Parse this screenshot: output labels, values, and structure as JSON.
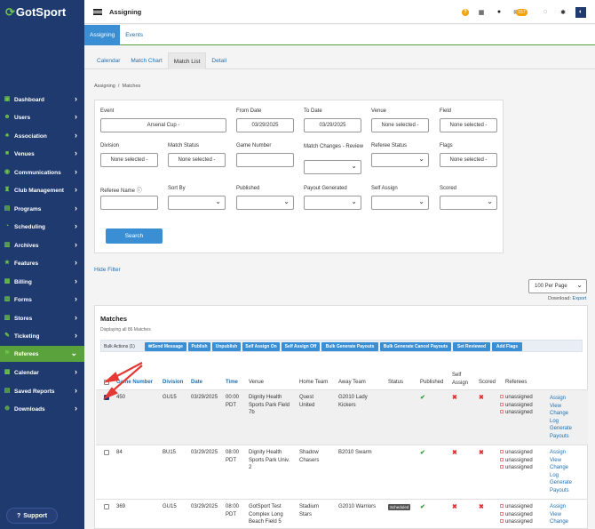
{
  "app": {
    "logo_text": "GotSport",
    "page_title": "Assigning"
  },
  "topbar": {
    "mail_badge": "157",
    "help_label": "?"
  },
  "sidebar": {
    "items": [
      {
        "label": "Dashboard",
        "icon": "dashboard-icon",
        "glyph": "▣"
      },
      {
        "label": "Users",
        "icon": "users-icon",
        "glyph": "☻"
      },
      {
        "label": "Association",
        "icon": "association-icon",
        "glyph": "♣"
      },
      {
        "label": "Venues",
        "icon": "venues-icon",
        "glyph": "■"
      },
      {
        "label": "Communications",
        "icon": "communications-icon",
        "glyph": "◉"
      },
      {
        "label": "Club Management",
        "icon": "club-icon",
        "glyph": "♜"
      },
      {
        "label": "Programs",
        "icon": "programs-icon",
        "glyph": "▤"
      },
      {
        "label": "Scheduling",
        "icon": "scheduling-icon",
        "glyph": "◔"
      },
      {
        "label": "Archives",
        "icon": "archives-icon",
        "glyph": "▥"
      },
      {
        "label": "Features",
        "icon": "features-icon",
        "glyph": "★"
      },
      {
        "label": "Billing",
        "icon": "billing-icon",
        "glyph": "▦"
      },
      {
        "label": "Forms",
        "icon": "forms-icon",
        "glyph": "▧"
      },
      {
        "label": "Stores",
        "icon": "stores-icon",
        "glyph": "▨"
      },
      {
        "label": "Ticketing",
        "icon": "ticketing-icon",
        "glyph": "✎"
      },
      {
        "label": "Referees",
        "icon": "referees-icon",
        "glyph": "⚑"
      },
      {
        "label": "Calendar",
        "icon": "calendar-icon",
        "glyph": "▩"
      },
      {
        "label": "Saved Reports",
        "icon": "reports-icon",
        "glyph": "▤"
      },
      {
        "label": "Downloads",
        "icon": "downloads-icon",
        "glyph": "⊕"
      }
    ],
    "active": "Referees",
    "support_label": "Support"
  },
  "tabs_primary": [
    "Assigning",
    "Events"
  ],
  "tabs_secondary": [
    "Calendar",
    "Match Chart",
    "Match List",
    "Detail"
  ],
  "breadcrumb": {
    "root": "Assigning",
    "sep": "/",
    "current": "Matches"
  },
  "filters": {
    "event_label": "Event",
    "event_value": "Arsenal Cup -",
    "from_label": "From Date",
    "from_value": "03/29/2025",
    "to_label": "To Date",
    "to_value": "03/29/2025",
    "venue_label": "Venue",
    "venue_value": "None selected -",
    "field_label": "Field",
    "field_value": "None selected -",
    "division_label": "Division",
    "division_value": "None selected -",
    "match_status_label": "Match Status",
    "match_status_value": "None selected -",
    "game_number_label": "Game Number",
    "match_changes_label": "Match Changes - Review",
    "referee_status_label": "Referee Status",
    "flags_label": "Flags",
    "flags_value": "None selected -",
    "referee_name_label": "Referee Name",
    "sort_by_label": "Sort By",
    "published_label": "Published",
    "payout_label": "Payout Generated",
    "self_assign_label": "Self Assign",
    "scored_label": "Scored",
    "search_button": "Search"
  },
  "hide_filter": "Hide Filter",
  "per_page": "100 Per Page",
  "download": {
    "label": "Download:",
    "link": "Export"
  },
  "matches": {
    "title": "Matches",
    "subtitle": "Displaying all 86 Matches",
    "bulk_label": "Bulk Actions (1)",
    "bulk_buttons": [
      "Send Message",
      "Publish",
      "Unpublish",
      "Self Assign On",
      "Self Assign Off",
      "Bulk Generate Payouts",
      "Bulk Generate Cancel Payouts",
      "Set Reviewed",
      "Add Flags"
    ],
    "headers": {
      "game_number": "Game Number",
      "division": "Division",
      "date": "Date",
      "time": "Time",
      "venue": "Venue",
      "home": "Home Team",
      "away": "Away Team",
      "status": "Status",
      "published": "Published",
      "self_assign": "Self Assign",
      "scored": "Scored",
      "referees": "Referees"
    },
    "rows": [
      {
        "game": "450",
        "division": "GU15",
        "date": "03/29/2025",
        "time1": "00:00",
        "time2": "PDT",
        "venue": [
          "Dignity Health",
          "Sports Park Field",
          "7b"
        ],
        "home": [
          "Quest",
          "United"
        ],
        "away": [
          "G2010 Lady",
          "Kickers"
        ],
        "status": "",
        "refs": [
          "unassigned",
          "unassigned",
          "unassigned"
        ],
        "actions": [
          "Assign",
          "View",
          "Change",
          "Log",
          "Generate",
          "Payouts"
        ]
      },
      {
        "game": "84",
        "division": "BU15",
        "date": "03/29/2025",
        "time1": "08:00",
        "time2": "PDT",
        "venue": [
          "Dignity Health",
          "Sports Park Univ.",
          "2"
        ],
        "home": [
          "Shadow",
          "Chasers"
        ],
        "away": [
          "B2010 Swarm"
        ],
        "status": "",
        "refs": [
          "unassigned",
          "unassigned",
          "unassigned"
        ],
        "actions": [
          "Assign",
          "View",
          "Change",
          "Log",
          "Generate",
          "Payouts"
        ]
      },
      {
        "game": "369",
        "division": "GU15",
        "date": "03/29/2025",
        "time1": "08:00",
        "time2": "PDT",
        "venue": [
          "GotSport Test",
          "Complex Long",
          "Beach Field 5"
        ],
        "home": [
          "Stadium",
          "Stars"
        ],
        "away": [
          "G2010 Warriors"
        ],
        "status": "Scheduled",
        "refs": [
          "unassigned",
          "unassigned",
          "unassigned"
        ],
        "actions": [
          "Assign",
          "View",
          "Change"
        ]
      }
    ]
  },
  "colors": {
    "sidebar": "#1e3a6e",
    "accent_green": "#5aa33c",
    "primary_blue": "#3a8fd4",
    "link_blue": "#1f6fb2",
    "arrow_red": "#e53935"
  }
}
